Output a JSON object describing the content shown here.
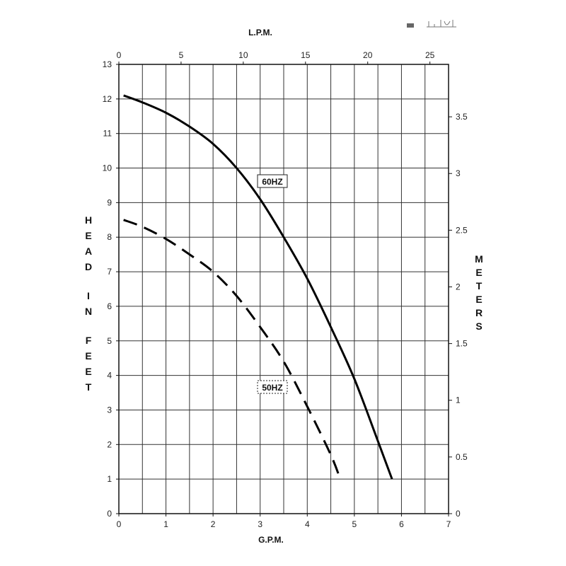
{
  "chart_data": {
    "type": "line",
    "title": "",
    "xlabel_bottom": "G.P.M.",
    "xlabel_top": "L.P.M.",
    "ylabel_left": "HEAD IN FEET",
    "ylabel_right": "METERS",
    "x_bottom_range": [
      0,
      7
    ],
    "x_bottom_ticks": [
      "0",
      "1",
      "2",
      "3",
      "4",
      "5",
      "6",
      "7"
    ],
    "x_top_ticks": [
      "0",
      "5",
      "10",
      "15",
      "20",
      "25"
    ],
    "y_left_range": [
      0,
      13
    ],
    "y_left_ticks": [
      "0",
      "1",
      "2",
      "3",
      "4",
      "5",
      "6",
      "7",
      "8",
      "9",
      "10",
      "11",
      "12",
      "13"
    ],
    "y_right_ticks": [
      "0",
      "0.5",
      "1",
      "1.5",
      "2",
      "2.5",
      "3",
      "3.5"
    ],
    "grid": true,
    "series": [
      {
        "name": "60HZ",
        "style": "solid",
        "color": "#000000",
        "x": [
          0.1,
          0.5,
          1.0,
          1.5,
          2.0,
          2.5,
          3.0,
          3.5,
          4.0,
          4.5,
          5.0,
          5.5,
          5.8
        ],
        "y": [
          12.1,
          11.9,
          11.6,
          11.2,
          10.7,
          10.0,
          9.1,
          8.0,
          6.8,
          5.4,
          3.9,
          2.1,
          1.0
        ]
      },
      {
        "name": "50HZ",
        "style": "dashed",
        "color": "#000000",
        "x": [
          0.1,
          0.5,
          1.0,
          1.5,
          2.0,
          2.5,
          3.0,
          3.5,
          4.0,
          4.5,
          4.7
        ],
        "y": [
          8.5,
          8.3,
          7.95,
          7.5,
          7.0,
          6.3,
          5.4,
          4.4,
          3.1,
          1.7,
          1.0
        ]
      }
    ]
  },
  "legend_icon": "pump-diagram-icon"
}
